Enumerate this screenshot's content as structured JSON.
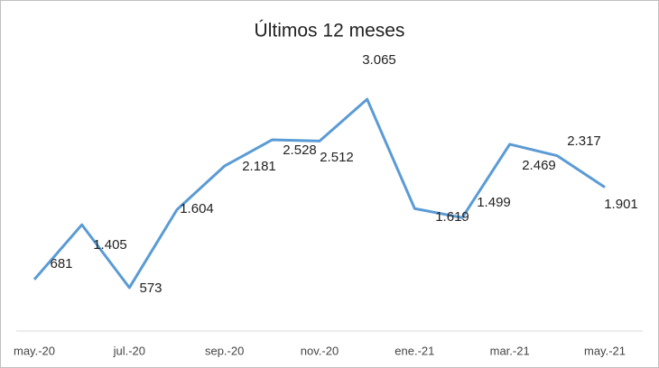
{
  "chart_data": {
    "type": "line",
    "title": "Últimos 12 meses",
    "categories": [
      "may.-20",
      null,
      "jul.-20",
      null,
      "sep.-20",
      null,
      "nov.-20",
      null,
      "ene.-21",
      null,
      "mar.-21",
      null,
      "may.-21"
    ],
    "series": [
      {
        "color": "#5b9bd5",
        "values": [
          681,
          1405,
          573,
          1604,
          2181,
          2528,
          2512,
          3065,
          1619,
          1499,
          2469,
          2317,
          1901
        ],
        "value_labels": [
          "681",
          "1.405",
          "573",
          "1.604",
          "2.181",
          "2.528",
          "2.512",
          "3.065",
          "1.619",
          "1.499",
          "2.469",
          "2.317",
          "1.901"
        ]
      }
    ]
  }
}
